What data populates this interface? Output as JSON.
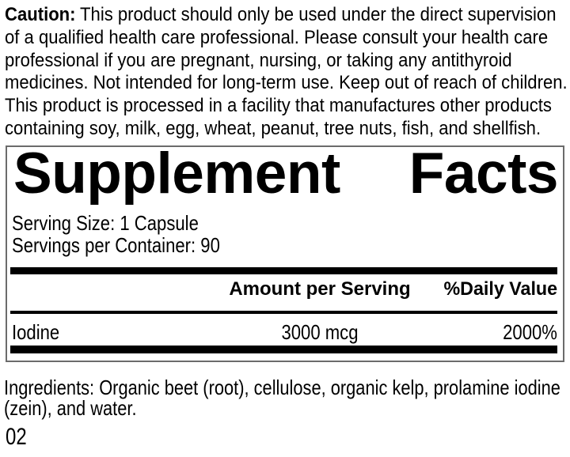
{
  "caution": {
    "label": "Caution:",
    "lines": [
      "This product should only be used under the direct supervision",
      "of a qualified health care professional. Please consult your health care",
      "professional if you are pregnant, nursing, or taking any antithyroid",
      "medicines. Not intended for long-term use. Keep out of reach of children.",
      "This product is processed in a facility that manufactures other products",
      "containing soy, milk, egg, wheat, peanut, tree nuts, fish, and shellfish."
    ]
  },
  "supplement_facts": {
    "title_left": "Supplement",
    "title_right": "Facts",
    "serving_size": "Serving Size: 1 Capsule",
    "servings_per_container": "Servings per Container: 90",
    "columns": {
      "amount": "Amount per Serving",
      "daily_value": "%Daily Value"
    },
    "rows": [
      {
        "name": "Iodine",
        "amount": "3000 mcg",
        "daily_value": "2000%"
      }
    ]
  },
  "ingredients": {
    "lines": [
      "Ingredients: Organic beet (root), cellulose, organic kelp, prolamine iodine",
      "(zein), and water."
    ]
  },
  "footer": {
    "code": "02"
  },
  "colors": {
    "background": "#ffffff",
    "text": "#000000",
    "bar": "#000000",
    "border": "#6b6b6b"
  }
}
